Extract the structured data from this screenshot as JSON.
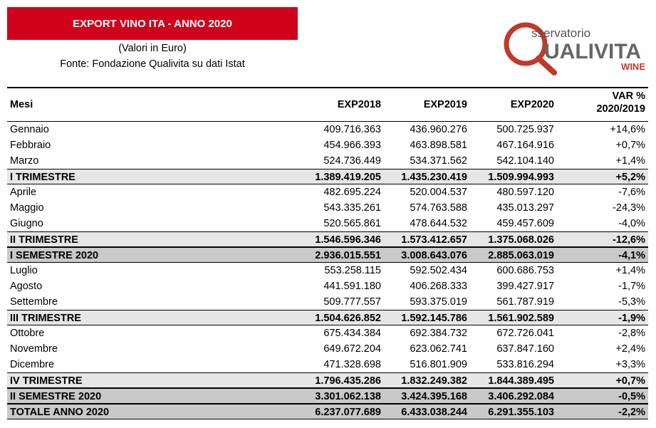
{
  "header": {
    "title": "EXPORT VINO ITA - ANNO 2020",
    "subtitle": "(Valori in Euro)",
    "source": "Fonte: Fondazione Qualivita su dati Istat"
  },
  "logo": {
    "top": "sservatorio",
    "main": "UALIVITA",
    "sub": "WINE"
  },
  "table": {
    "columns": [
      "Mesi",
      "EXP2018",
      "EXP2019",
      "EXP2020",
      [
        "VAR %",
        "2020/2019"
      ]
    ],
    "rows": [
      [
        "Gennaio",
        "409.716.363",
        "436.960.276",
        "500.725.937",
        "+14,6%"
      ],
      [
        "Febbraio",
        "454.966.393",
        "463.898.581",
        "467.164.916",
        "+0,7%"
      ],
      [
        "Marzo",
        "524.736.449",
        "534.371.562",
        "542.104.140",
        "+1,4%"
      ],
      [
        "I TRIMESTRE",
        "1.389.419.205",
        "1.435.230.419",
        "1.509.994.993",
        "+5,2%"
      ],
      [
        "Aprile",
        "482.695.224",
        "520.004.537",
        "480.597.120",
        "-7,6%"
      ],
      [
        "Maggio",
        "543.335.261",
        "574.763.588",
        "435.013.297",
        "-24,3%"
      ],
      [
        "Giugno",
        "520.565.861",
        "478.644.532",
        "459.457.609",
        "-4,0%"
      ],
      [
        "II TRIMESTRE",
        "1.546.596.346",
        "1.573.412.657",
        "1.375.068.026",
        "-12,6%"
      ],
      [
        "I SEMESTRE 2020",
        "2.936.015.551",
        "3.008.643.076",
        "2.885.063.019",
        "-4,1%"
      ],
      [
        "Luglio",
        "553.258.115",
        "592.502.434",
        "600.686.753",
        "+1,4%"
      ],
      [
        "Agosto",
        "441.591.180",
        "406.268.333",
        "399.427.917",
        "-1,7%"
      ],
      [
        "Settembre",
        "509.777.557",
        "593.375.019",
        "561.787.919",
        "-5,3%"
      ],
      [
        "III TRIMESTRE",
        "1.504.626.852",
        "1.592.145.786",
        "1.561.902.589",
        "-1,9%"
      ],
      [
        "Ottobre",
        "675.434.384",
        "692.384.732",
        "672.726.041",
        "-2,8%"
      ],
      [
        "Novembre",
        "649.672.204",
        "623.062.741",
        "637.847.160",
        "+2,4%"
      ],
      [
        "Dicembre",
        "471.328.698",
        "516.801.909",
        "533.816.294",
        "+3,3%"
      ],
      [
        "IV TRIMESTRE",
        "1.796.435.286",
        "1.832.249.382",
        "1.844.389.495",
        "+0,7%"
      ],
      [
        "II SEMESTRE 2020",
        "3.301.062.138",
        "3.424.395.168",
        "3.406.292.084",
        "-0,5%"
      ],
      [
        "TOTALE ANNO 2020",
        "6.237.077.689",
        "6.433.038.244",
        "6.291.355.103",
        "-2,2%"
      ]
    ]
  }
}
